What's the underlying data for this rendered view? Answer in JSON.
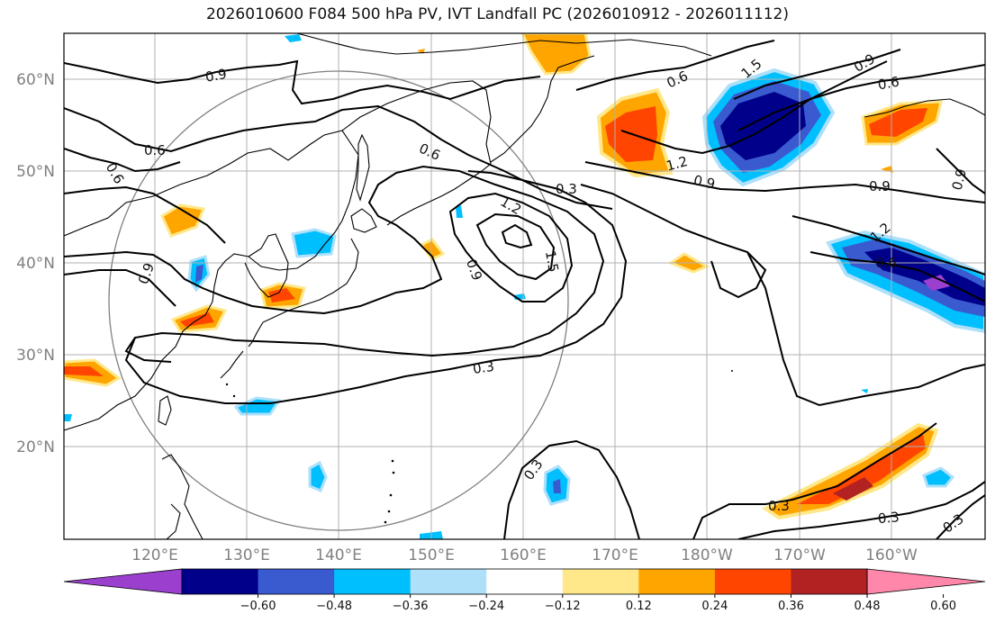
{
  "title": "2026010600 F084 500 hPa PV, IVT Landfall PC (2026010912 - 2026011112)",
  "lat_labels": [
    "60°N",
    "50°N",
    "40°N",
    "30°N",
    "20°N"
  ],
  "lon_labels": [
    "120°E",
    "130°E",
    "140°E",
    "150°E",
    "160°E",
    "170°E",
    "180°W",
    "170°W",
    "160°W"
  ],
  "contour_labels": [
    "0.9",
    "0.6",
    "0.6",
    "0.9",
    "0.6",
    "1.2",
    "1.5",
    "0.6",
    "0.3",
    "1.2",
    "1.5",
    "0.9",
    "0.9",
    "0.3",
    "0.3",
    "0.3",
    "0.3",
    "0.3",
    "0.9",
    "0.9",
    "1.2",
    "0.6",
    "0.9",
    "0.6"
  ],
  "colorbar": {
    "ticks": [
      "−0.60",
      "−0.48",
      "−0.36",
      "−0.24",
      "−0.12",
      "0.12",
      "0.24",
      "0.36",
      "0.48",
      "0.60"
    ],
    "colors": [
      "#9b3fcf",
      "#00008b",
      "#3a5bd0",
      "#00bfff",
      "#aee0fa",
      "#ffffff",
      "#ffe88a",
      "#ffa500",
      "#ff4500",
      "#b22222",
      "#ff88aa"
    ]
  }
}
